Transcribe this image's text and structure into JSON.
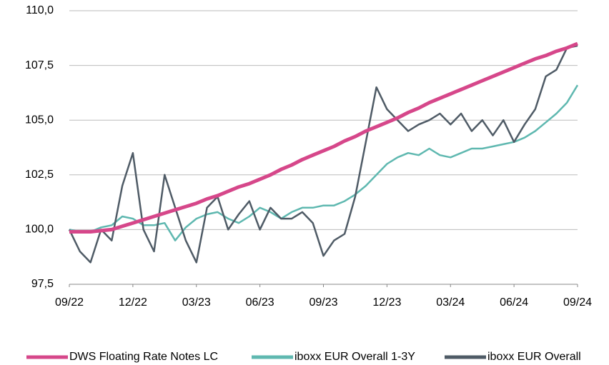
{
  "chart_data": {
    "type": "line",
    "x": [
      0,
      0.5,
      1,
      1.5,
      2,
      2.5,
      3,
      3.5,
      4,
      4.5,
      5,
      5.5,
      6,
      6.5,
      7,
      7.5,
      8,
      8.5,
      9,
      9.5,
      10,
      10.5,
      11,
      11.5,
      12,
      12.5,
      13,
      13.5,
      14,
      14.5,
      15,
      15.5,
      16,
      16.5,
      17,
      17.5,
      18,
      18.5,
      19,
      19.5,
      20,
      20.5,
      21,
      21.5,
      22,
      22.5,
      23,
      23.5,
      24
    ],
    "xlim": [
      0,
      24
    ],
    "xticks": [
      {
        "value": 0,
        "label": "09/22"
      },
      {
        "value": 3,
        "label": "12/22"
      },
      {
        "value": 6,
        "label": "03/23"
      },
      {
        "value": 9,
        "label": "06/23"
      },
      {
        "value": 12,
        "label": "09/23"
      },
      {
        "value": 15,
        "label": "12/23"
      },
      {
        "value": 18,
        "label": "03/24"
      },
      {
        "value": 21,
        "label": "06/24"
      },
      {
        "value": 24,
        "label": "09/24"
      }
    ],
    "ylim": [
      97.5,
      110
    ],
    "yticks": [
      {
        "value": 97.5,
        "label": "97,5"
      },
      {
        "value": 100,
        "label": "100,0"
      },
      {
        "value": 102.5,
        "label": "102,5"
      },
      {
        "value": 105,
        "label": "105,0"
      },
      {
        "value": 107.5,
        "label": "107,5"
      },
      {
        "value": 110,
        "label": "110,0"
      }
    ],
    "grid": true,
    "legend": "bottom",
    "series": [
      {
        "name": "DWS Floating Rate Notes LC",
        "color": "#d6478a",
        "values": [
          99.9,
          99.9,
          99.9,
          99.95,
          100.0,
          100.15,
          100.3,
          100.45,
          100.6,
          100.75,
          100.9,
          101.05,
          101.2,
          101.4,
          101.55,
          101.75,
          101.95,
          102.1,
          102.3,
          102.5,
          102.75,
          102.95,
          103.2,
          103.4,
          103.6,
          103.8,
          104.05,
          104.25,
          104.5,
          104.7,
          104.9,
          105.1,
          105.35,
          105.55,
          105.8,
          106.0,
          106.2,
          106.4,
          106.6,
          106.8,
          107.0,
          107.2,
          107.4,
          107.6,
          107.8,
          107.95,
          108.15,
          108.3,
          108.5
        ]
      },
      {
        "name": "iboxx EUR Overall 1-3Y",
        "color": "#5fb8b0",
        "values": [
          100,
          99.9,
          99.9,
          100.1,
          100.2,
          100.6,
          100.5,
          100.2,
          100.2,
          100.3,
          99.5,
          100.1,
          100.5,
          100.7,
          100.8,
          100.5,
          100.3,
          100.6,
          101,
          100.8,
          100.5,
          100.8,
          101,
          101,
          101.1,
          101.1,
          101.3,
          101.6,
          102,
          102.5,
          103,
          103.3,
          103.5,
          103.4,
          103.7,
          103.4,
          103.3,
          103.5,
          103.7,
          103.7,
          103.8,
          103.9,
          104,
          104.2,
          104.5,
          104.9,
          105.3,
          105.8,
          106.6
        ]
      },
      {
        "name": "iboxx EUR Overall",
        "color": "#4f5b66",
        "values": [
          100,
          99,
          98.5,
          100,
          99.5,
          102,
          103.5,
          100,
          99,
          102.5,
          101,
          99.5,
          98.5,
          101,
          101.5,
          100,
          100.7,
          101.3,
          100,
          101,
          100.5,
          100.5,
          100.8,
          100.3,
          98.8,
          99.5,
          99.8,
          101.5,
          104,
          106.5,
          105.5,
          105,
          104.5,
          104.8,
          105,
          105.3,
          104.8,
          105.3,
          104.5,
          105,
          104.3,
          105,
          104,
          104.8,
          105.5,
          107,
          107.3,
          108.3,
          108.4
        ]
      }
    ]
  }
}
